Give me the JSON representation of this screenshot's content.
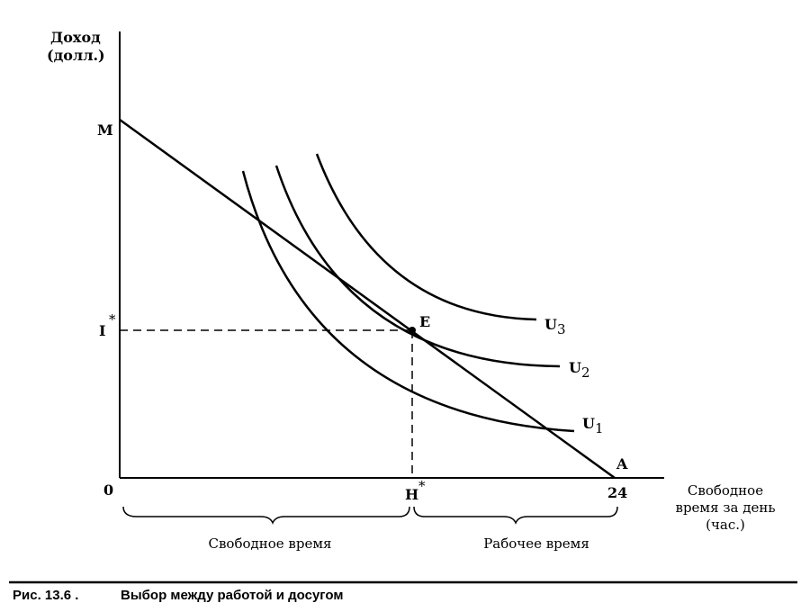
{
  "y_axis": {
    "line1": "Доход",
    "line2": "(долл.)"
  },
  "x_axis": {
    "line1": "Свободное",
    "line2": "время за день",
    "line3": "(час.)"
  },
  "points": {
    "M": "M",
    "I": "I",
    "I_star": "*",
    "E": "E",
    "A": "A",
    "zero": "0",
    "H": "H",
    "H_star": "*",
    "twenty_four": "24"
  },
  "curves": {
    "U1": {
      "base": "U",
      "sub": "1"
    },
    "U2": {
      "base": "U",
      "sub": "2"
    },
    "U3": {
      "base": "U",
      "sub": "3"
    }
  },
  "braces": {
    "leisure": "Свободное время",
    "work": "Рабочее время"
  },
  "caption": {
    "fig": "Рис. 13.6 .",
    "title": "Выбор между работой и досугом"
  }
}
